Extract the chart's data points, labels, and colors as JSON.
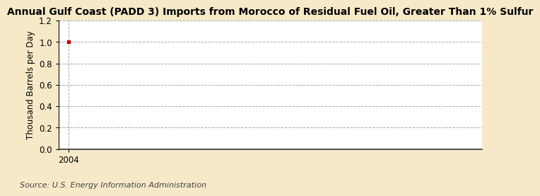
{
  "title": "Annual Gulf Coast (PADD 3) Imports from Morocco of Residual Fuel Oil, Greater Than 1% Sulfur",
  "ylabel": "Thousand Barrels per Day",
  "source": "Source: U.S. Energy Information Administration",
  "x_data": [
    2004
  ],
  "y_data": [
    1.0
  ],
  "ylim": [
    0.0,
    1.2
  ],
  "yticks": [
    0.0,
    0.2,
    0.4,
    0.6,
    0.8,
    1.0,
    1.2
  ],
  "xlim": [
    2003.5,
    2024
  ],
  "xticks": [
    2004
  ],
  "figure_bg_color": "#f5e9c8",
  "plot_bg_color": "#ffffff",
  "marker_color": "#cc0000",
  "grid_color": "#aaaaaa",
  "spine_color": "#333333",
  "title_fontsize": 10,
  "label_fontsize": 8.5,
  "tick_fontsize": 8.5,
  "source_fontsize": 8
}
